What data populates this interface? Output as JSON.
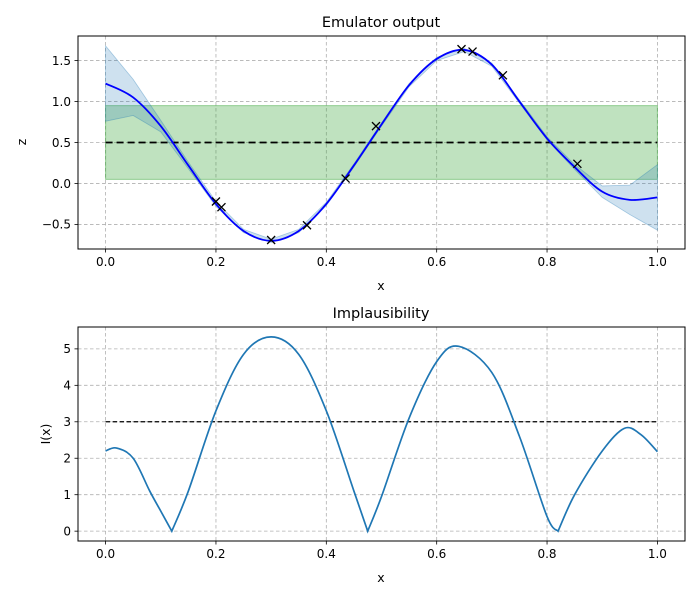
{
  "chart_data": [
    {
      "type": "line",
      "title": "Emulator output",
      "xlabel": "x",
      "ylabel": "z",
      "xlim": [
        -0.05,
        1.05
      ],
      "ylim": [
        -0.8,
        1.8
      ],
      "xticks": [
        0.0,
        0.2,
        0.4,
        0.6,
        0.8,
        1.0
      ],
      "xtick_labels": [
        "0.0",
        "0.2",
        "0.4",
        "0.6",
        "0.8",
        "1.0"
      ],
      "yticks": [
        -0.5,
        0.0,
        0.5,
        1.0,
        1.5
      ],
      "ytick_labels": [
        "−0.5",
        "0.0",
        "0.5",
        "1.0",
        "1.5"
      ],
      "grid": true,
      "observation": {
        "value": 0.5,
        "band": [
          0.05,
          0.95
        ],
        "x_range": [
          0.0,
          1.0
        ]
      },
      "mean": {
        "x": [
          0.0,
          0.05,
          0.1,
          0.15,
          0.2,
          0.25,
          0.3,
          0.35,
          0.4,
          0.45,
          0.5,
          0.55,
          0.6,
          0.65,
          0.7,
          0.75,
          0.8,
          0.85,
          0.9,
          0.95,
          1.0
        ],
        "y": [
          1.22,
          1.05,
          0.7,
          0.22,
          -0.25,
          -0.58,
          -0.7,
          -0.58,
          -0.25,
          0.22,
          0.72,
          1.2,
          1.52,
          1.63,
          1.45,
          1.0,
          0.55,
          0.2,
          -0.1,
          -0.2,
          -0.17
        ]
      },
      "uncertainty": {
        "x": [
          0.0,
          0.05,
          0.1,
          0.15,
          0.2,
          0.25,
          0.3,
          0.35,
          0.4,
          0.45,
          0.5,
          0.55,
          0.6,
          0.65,
          0.7,
          0.75,
          0.8,
          0.85,
          0.9,
          0.95,
          1.0
        ],
        "upper": [
          1.68,
          1.27,
          0.77,
          0.26,
          -0.22,
          -0.56,
          -0.68,
          -0.56,
          -0.23,
          0.24,
          0.74,
          1.22,
          1.54,
          1.65,
          1.47,
          1.02,
          0.57,
          0.23,
          -0.03,
          -0.02,
          0.23
        ],
        "lower": [
          0.76,
          0.83,
          0.63,
          0.18,
          -0.28,
          -0.6,
          -0.72,
          -0.6,
          -0.27,
          0.2,
          0.7,
          1.18,
          1.5,
          1.61,
          1.43,
          0.98,
          0.53,
          0.17,
          -0.17,
          -0.38,
          -0.57
        ]
      },
      "training_points": {
        "x": [
          0.2,
          0.21,
          0.3,
          0.365,
          0.435,
          0.49,
          0.645,
          0.665,
          0.72,
          0.855
        ],
        "y": [
          -0.22,
          -0.29,
          -0.69,
          -0.51,
          0.06,
          0.7,
          1.64,
          1.61,
          1.32,
          0.24
        ]
      },
      "colors": {
        "mean": "#0000ff",
        "uncertainty": "#1f77b4",
        "observation_band": "#2ca02c",
        "observation_line": "#000000",
        "points": "#000000"
      }
    },
    {
      "type": "line",
      "title": "Implausibility",
      "xlabel": "x",
      "ylabel": "I(x)",
      "xlim": [
        -0.05,
        1.05
      ],
      "ylim": [
        -0.27,
        5.6
      ],
      "xticks": [
        0.0,
        0.2,
        0.4,
        0.6,
        0.8,
        1.0
      ],
      "xtick_labels": [
        "0.0",
        "0.2",
        "0.4",
        "0.6",
        "0.8",
        "1.0"
      ],
      "yticks": [
        0,
        1,
        2,
        3,
        4,
        5
      ],
      "ytick_labels": [
        "0",
        "1",
        "2",
        "3",
        "4",
        "5"
      ],
      "grid": true,
      "threshold": {
        "value": 3,
        "x_range": [
          0.0,
          1.0
        ]
      },
      "implausibility": {
        "x": [
          0.0,
          0.02,
          0.05,
          0.08,
          0.1,
          0.12,
          0.15,
          0.2,
          0.25,
          0.3,
          0.35,
          0.4,
          0.45,
          0.475,
          0.5,
          0.55,
          0.6,
          0.64,
          0.7,
          0.75,
          0.8,
          0.82,
          0.85,
          0.9,
          0.94,
          0.97,
          1.0
        ],
        "y": [
          2.2,
          2.28,
          2.0,
          1.1,
          0.55,
          0.0,
          1.1,
          3.3,
          4.85,
          5.33,
          4.85,
          3.3,
          1.1,
          0.0,
          0.95,
          3.1,
          4.65,
          5.07,
          4.35,
          2.6,
          0.4,
          0.0,
          1.0,
          2.2,
          2.82,
          2.65,
          2.18
        ]
      },
      "colors": {
        "line": "#1f77b4",
        "threshold": "#000000"
      }
    }
  ]
}
